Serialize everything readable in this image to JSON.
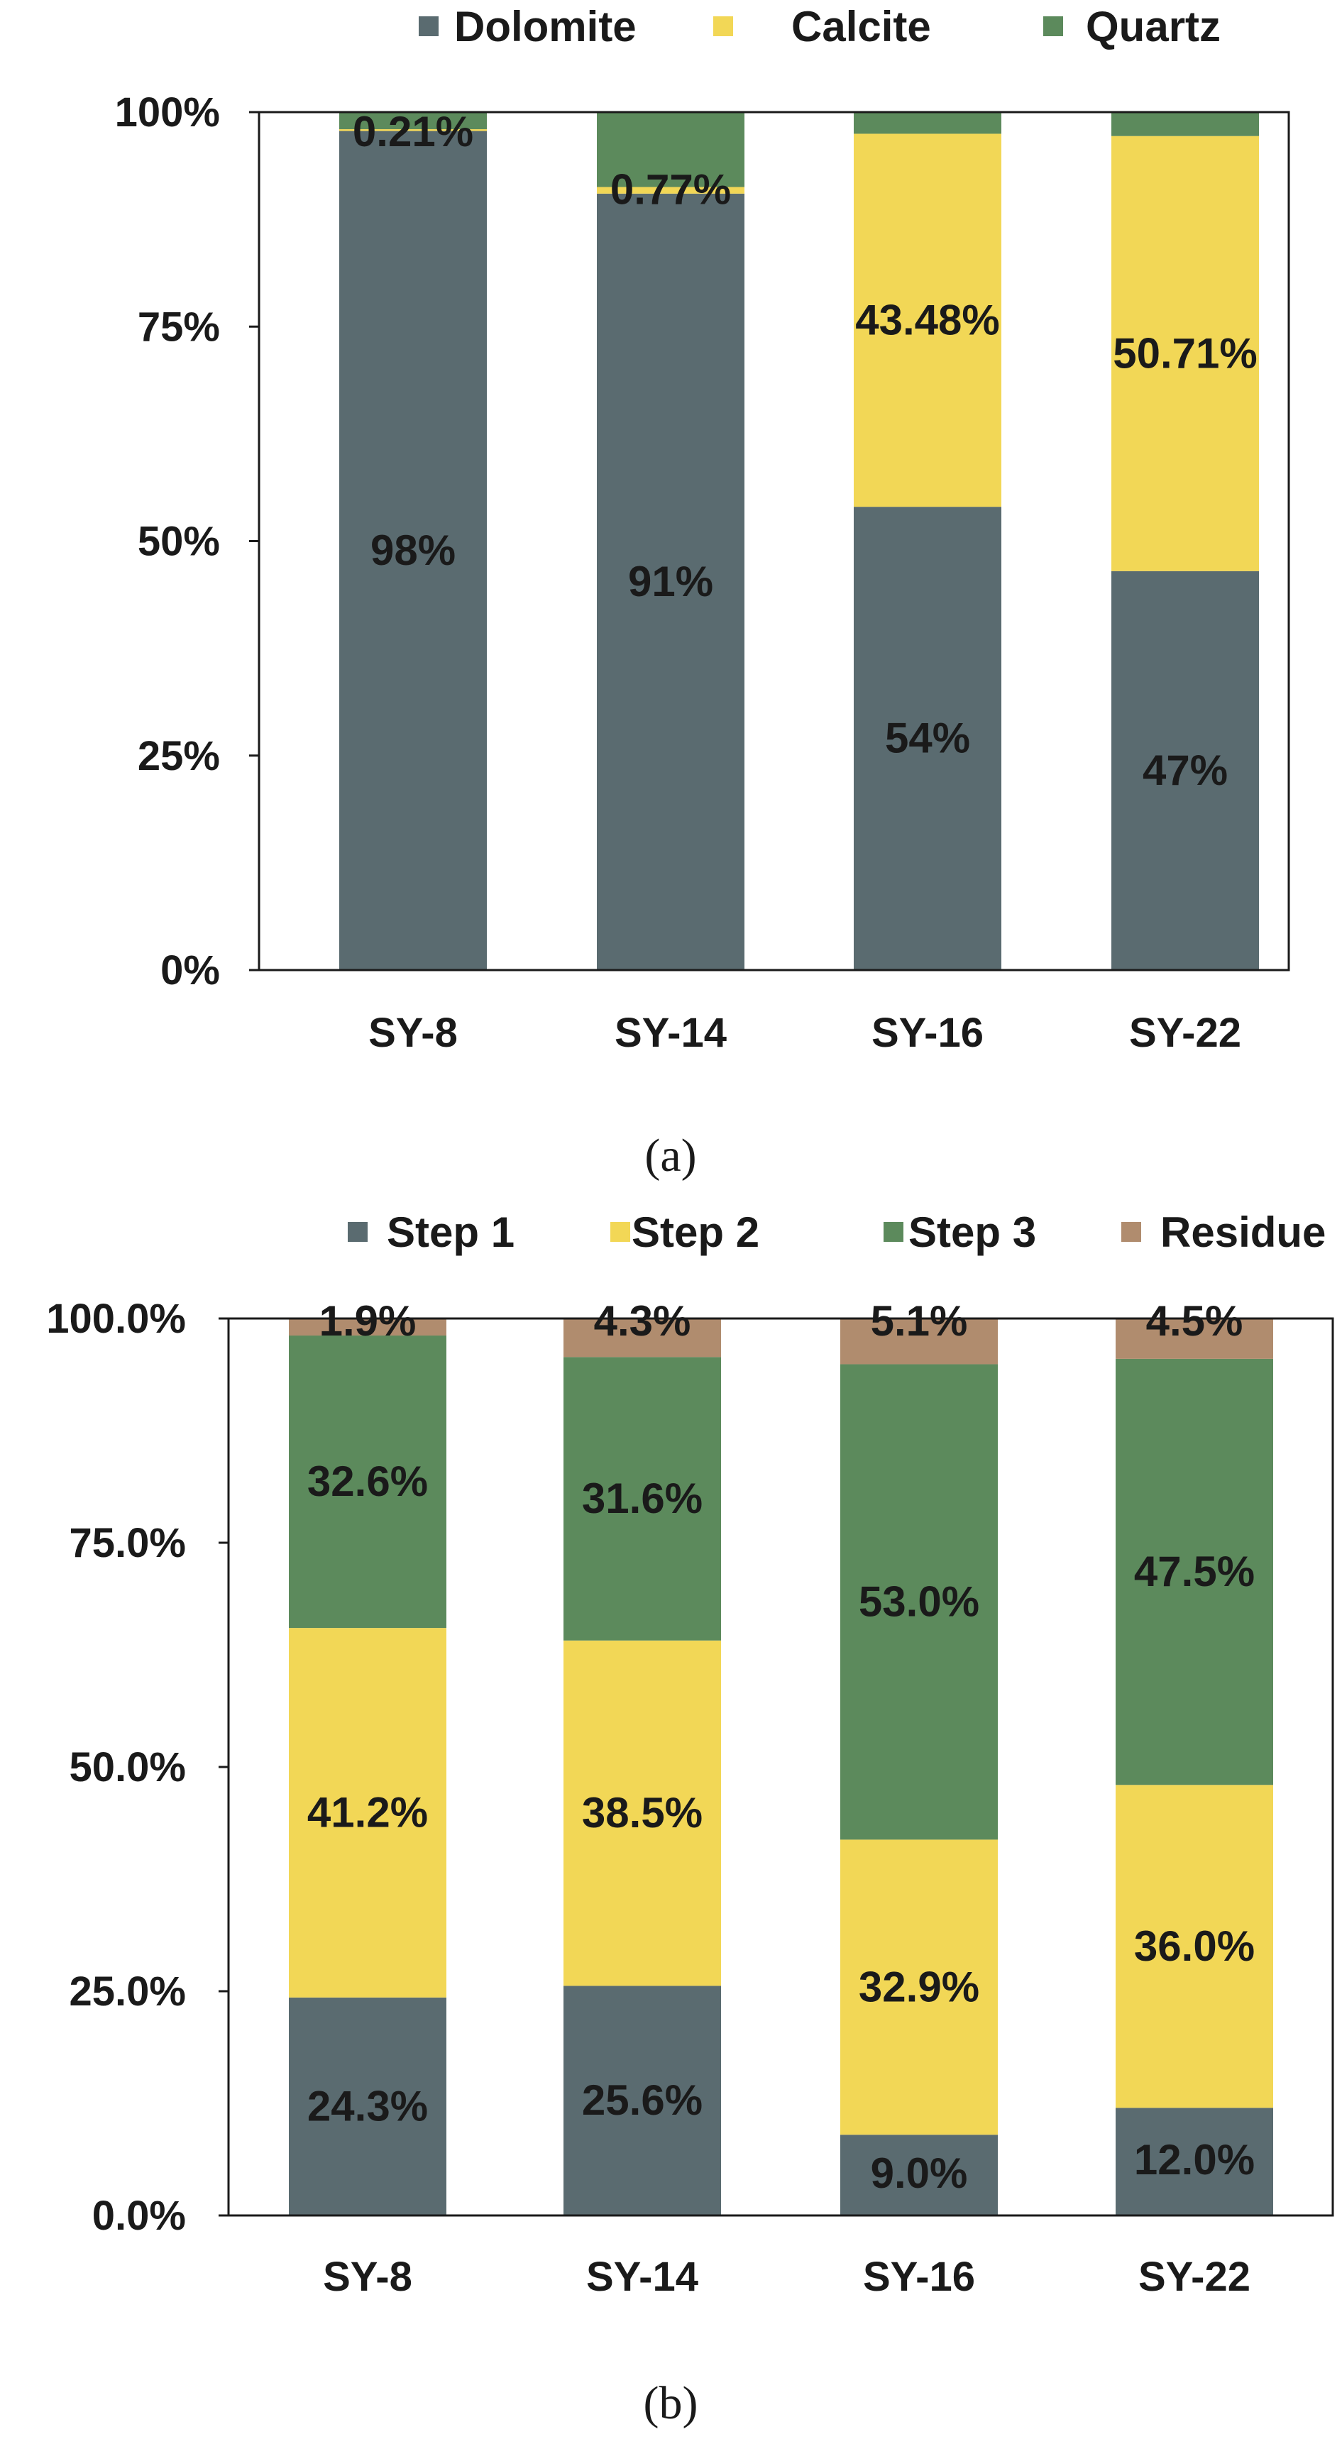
{
  "colors": {
    "dolomite": "#5a6b70",
    "calcite": "#f2d756",
    "quartz": "#5c8a5c",
    "step1": "#5a6b70",
    "step2": "#f2d756",
    "step3": "#5c8a5c",
    "residue": "#b08c6e",
    "frame": "#1a1a1a",
    "text": "#1a1a1a"
  },
  "chart_data": [
    {
      "type": "bar",
      "stacked": true,
      "caption": "(a)",
      "title": "",
      "xlabel": "",
      "ylabel": "",
      "categories": [
        "SY-8",
        "SY-14",
        "SY-16",
        "SY-22"
      ],
      "ylim": [
        0,
        100
      ],
      "yticks": [
        0,
        25,
        50,
        75,
        100
      ],
      "ytick_labels": [
        "0%",
        "25%",
        "50%",
        "75%",
        "100%"
      ],
      "legend_position": "top",
      "series": [
        {
          "name": "Dolomite",
          "color_key": "dolomite",
          "values": [
            97.8,
            90.5,
            54.0,
            46.5
          ],
          "labels": [
            "98%",
            "91%",
            "54%",
            "47%"
          ]
        },
        {
          "name": "Calcite",
          "color_key": "calcite",
          "values": [
            0.21,
            0.77,
            43.48,
            50.71
          ],
          "labels": [
            "0.21%",
            "0.77%",
            "43.48%",
            "50.71%"
          ]
        },
        {
          "name": "Quartz",
          "color_key": "quartz",
          "values": [
            1.99,
            8.73,
            2.52,
            2.79
          ],
          "labels": [
            "",
            "",
            "",
            ""
          ]
        }
      ]
    },
    {
      "type": "bar",
      "stacked": true,
      "caption": "(b)",
      "title": "",
      "xlabel": "",
      "ylabel": "",
      "categories": [
        "SY-8",
        "SY-14",
        "SY-16",
        "SY-22"
      ],
      "ylim": [
        0,
        100
      ],
      "yticks": [
        0,
        25,
        50,
        75,
        100
      ],
      "ytick_labels": [
        "0.0%",
        "25.0%",
        "50.0%",
        "75.0%",
        "100.0%"
      ],
      "legend_position": "top",
      "series": [
        {
          "name": "Step 1",
          "color_key": "step1",
          "values": [
            24.3,
            25.6,
            9.0,
            12.0
          ],
          "labels": [
            "24.3%",
            "25.6%",
            "9.0%",
            "12.0%"
          ]
        },
        {
          "name": "Step 2",
          "color_key": "step2",
          "values": [
            41.2,
            38.5,
            32.9,
            36.0
          ],
          "labels": [
            "41.2%",
            "38.5%",
            "32.9%",
            "36.0%"
          ]
        },
        {
          "name": "Step 3",
          "color_key": "step3",
          "values": [
            32.6,
            31.6,
            53.0,
            47.5
          ],
          "labels": [
            "32.6%",
            "31.6%",
            "53.0%",
            "47.5%"
          ]
        },
        {
          "name": "Residue",
          "color_key": "residue",
          "values": [
            1.9,
            4.3,
            5.1,
            4.5
          ],
          "labels": [
            "1.9%",
            "4.3%",
            "5.1%",
            "4.5%"
          ]
        }
      ]
    }
  ]
}
